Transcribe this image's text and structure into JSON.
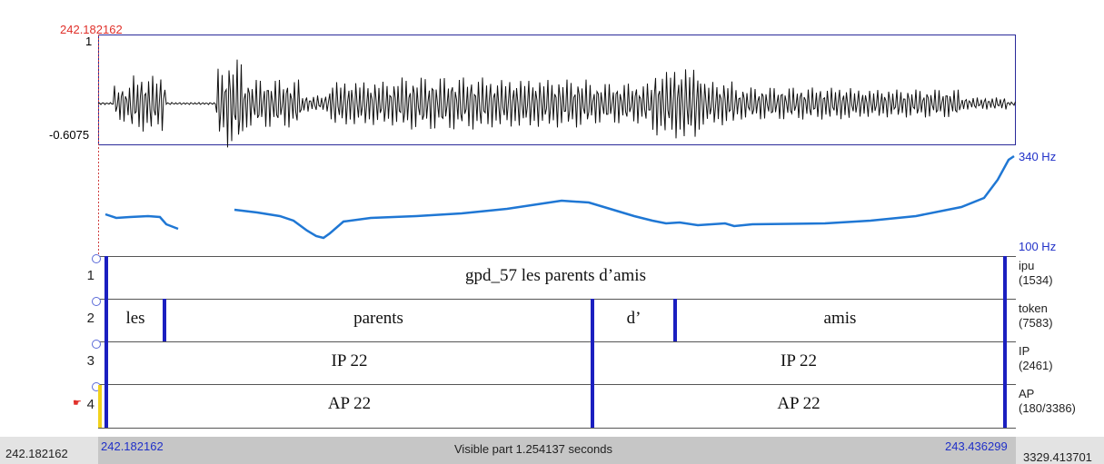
{
  "top_left_time": "242.182162",
  "waveform": {
    "y_max": "1",
    "y_min": "-0.6075"
  },
  "pitch": {
    "max_label": "340 Hz",
    "min_label": "100 Hz"
  },
  "tiers": [
    {
      "number": "1",
      "name": "ipu",
      "count": "(1534)"
    },
    {
      "number": "2",
      "name": "token",
      "count": "(7583)"
    },
    {
      "number": "3",
      "name": "IP",
      "count": "(2461)"
    },
    {
      "number": "4",
      "name": "AP",
      "count": "(180/3386)"
    }
  ],
  "intervals": {
    "tier1": [
      "gpd_57 les parents d’amis"
    ],
    "tier2": [
      "les",
      "parents",
      "d’",
      "amis"
    ],
    "tier3": [
      "IP 22",
      "IP 22"
    ],
    "tier4": [
      "AP 22",
      "AP 22"
    ]
  },
  "bottom": {
    "left_time": "242.182162",
    "visible_start": "242.182162",
    "visible_label": "Visible part 1.254137 seconds",
    "visible_end": "243.436299",
    "total_end": "3329.413701"
  },
  "colors": {
    "waveform": "#111111",
    "pitch": "#1f77d4",
    "boundary": "#1b1fc0",
    "selected_tier": "#e0302a"
  }
}
